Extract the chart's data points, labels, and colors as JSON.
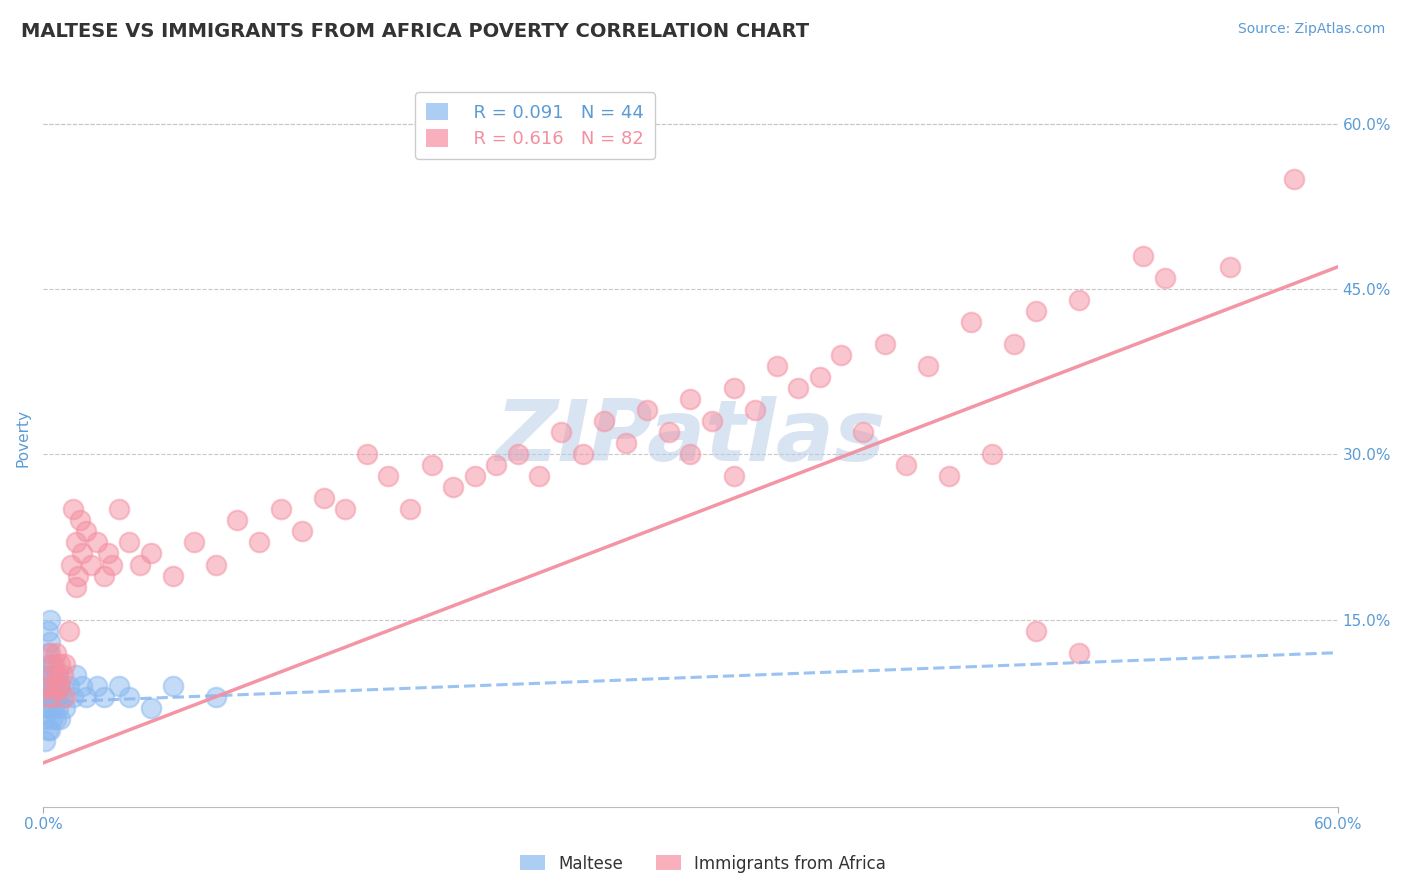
{
  "title": "MALTESE VS IMMIGRANTS FROM AFRICA POVERTY CORRELATION CHART",
  "source": "Source: ZipAtlas.com",
  "ylabel": "Poverty",
  "xlim": [
    0.0,
    0.6
  ],
  "ylim": [
    -0.02,
    0.65
  ],
  "yticks": [
    0.15,
    0.3,
    0.45,
    0.6
  ],
  "ytick_labels": [
    "15.0%",
    "30.0%",
    "45.0%",
    "60.0%"
  ],
  "xtick_positions": [
    0.0,
    0.6
  ],
  "xtick_labels": [
    "0.0%",
    "60.0%"
  ],
  "bg_color": "#ffffff",
  "grid_color": "#c8c8c8",
  "watermark": "ZIPatlas",
  "watermark_color": "#b8cfe8",
  "maltese_color": "#89b8f0",
  "africa_color": "#f48fa0",
  "legend_R1": "R = 0.091",
  "legend_N1": "N = 44",
  "legend_R2": "R = 0.616",
  "legend_N2": "N = 82",
  "maltese_x": [
    0.001,
    0.001,
    0.001,
    0.001,
    0.002,
    0.002,
    0.002,
    0.002,
    0.002,
    0.003,
    0.003,
    0.003,
    0.003,
    0.003,
    0.003,
    0.003,
    0.004,
    0.004,
    0.004,
    0.004,
    0.005,
    0.005,
    0.005,
    0.006,
    0.006,
    0.006,
    0.007,
    0.007,
    0.008,
    0.008,
    0.009,
    0.01,
    0.012,
    0.014,
    0.015,
    0.018,
    0.02,
    0.025,
    0.028,
    0.035,
    0.04,
    0.05,
    0.06,
    0.08
  ],
  "maltese_y": [
    0.04,
    0.06,
    0.08,
    0.1,
    0.05,
    0.07,
    0.09,
    0.12,
    0.14,
    0.05,
    0.07,
    0.08,
    0.1,
    0.11,
    0.13,
    0.15,
    0.06,
    0.08,
    0.09,
    0.11,
    0.07,
    0.09,
    0.1,
    0.06,
    0.08,
    0.1,
    0.07,
    0.09,
    0.06,
    0.09,
    0.08,
    0.07,
    0.09,
    0.08,
    0.1,
    0.09,
    0.08,
    0.09,
    0.08,
    0.09,
    0.08,
    0.07,
    0.09,
    0.08
  ],
  "africa_x": [
    0.002,
    0.003,
    0.003,
    0.004,
    0.005,
    0.005,
    0.006,
    0.006,
    0.007,
    0.008,
    0.008,
    0.009,
    0.01,
    0.01,
    0.012,
    0.013,
    0.014,
    0.015,
    0.015,
    0.016,
    0.017,
    0.018,
    0.02,
    0.022,
    0.025,
    0.028,
    0.03,
    0.032,
    0.035,
    0.04,
    0.045,
    0.05,
    0.06,
    0.07,
    0.08,
    0.09,
    0.1,
    0.11,
    0.12,
    0.13,
    0.14,
    0.15,
    0.16,
    0.17,
    0.18,
    0.19,
    0.2,
    0.21,
    0.22,
    0.23,
    0.24,
    0.25,
    0.26,
    0.27,
    0.28,
    0.29,
    0.3,
    0.31,
    0.32,
    0.33,
    0.34,
    0.35,
    0.36,
    0.37,
    0.39,
    0.41,
    0.43,
    0.45,
    0.46,
    0.48,
    0.3,
    0.32,
    0.38,
    0.4,
    0.42,
    0.44,
    0.46,
    0.48,
    0.51,
    0.52,
    0.55,
    0.58
  ],
  "africa_y": [
    0.08,
    0.09,
    0.12,
    0.1,
    0.08,
    0.11,
    0.09,
    0.12,
    0.1,
    0.09,
    0.11,
    0.1,
    0.08,
    0.11,
    0.14,
    0.2,
    0.25,
    0.18,
    0.22,
    0.19,
    0.24,
    0.21,
    0.23,
    0.2,
    0.22,
    0.19,
    0.21,
    0.2,
    0.25,
    0.22,
    0.2,
    0.21,
    0.19,
    0.22,
    0.2,
    0.24,
    0.22,
    0.25,
    0.23,
    0.26,
    0.25,
    0.3,
    0.28,
    0.25,
    0.29,
    0.27,
    0.28,
    0.29,
    0.3,
    0.28,
    0.32,
    0.3,
    0.33,
    0.31,
    0.34,
    0.32,
    0.35,
    0.33,
    0.36,
    0.34,
    0.38,
    0.36,
    0.37,
    0.39,
    0.4,
    0.38,
    0.42,
    0.4,
    0.43,
    0.44,
    0.3,
    0.28,
    0.32,
    0.29,
    0.28,
    0.3,
    0.14,
    0.12,
    0.48,
    0.46,
    0.47,
    0.55
  ],
  "maltese_trend_x": [
    0.0,
    0.6
  ],
  "maltese_trend_y": [
    0.075,
    0.12
  ],
  "africa_trend_x": [
    0.0,
    0.6
  ],
  "africa_trend_y": [
    0.02,
    0.47
  ],
  "title_color": "#333333",
  "axis_color": "#5b9bd5",
  "legend_color_blue": "#5b9bd5",
  "legend_color_pink": "#f48fa0"
}
